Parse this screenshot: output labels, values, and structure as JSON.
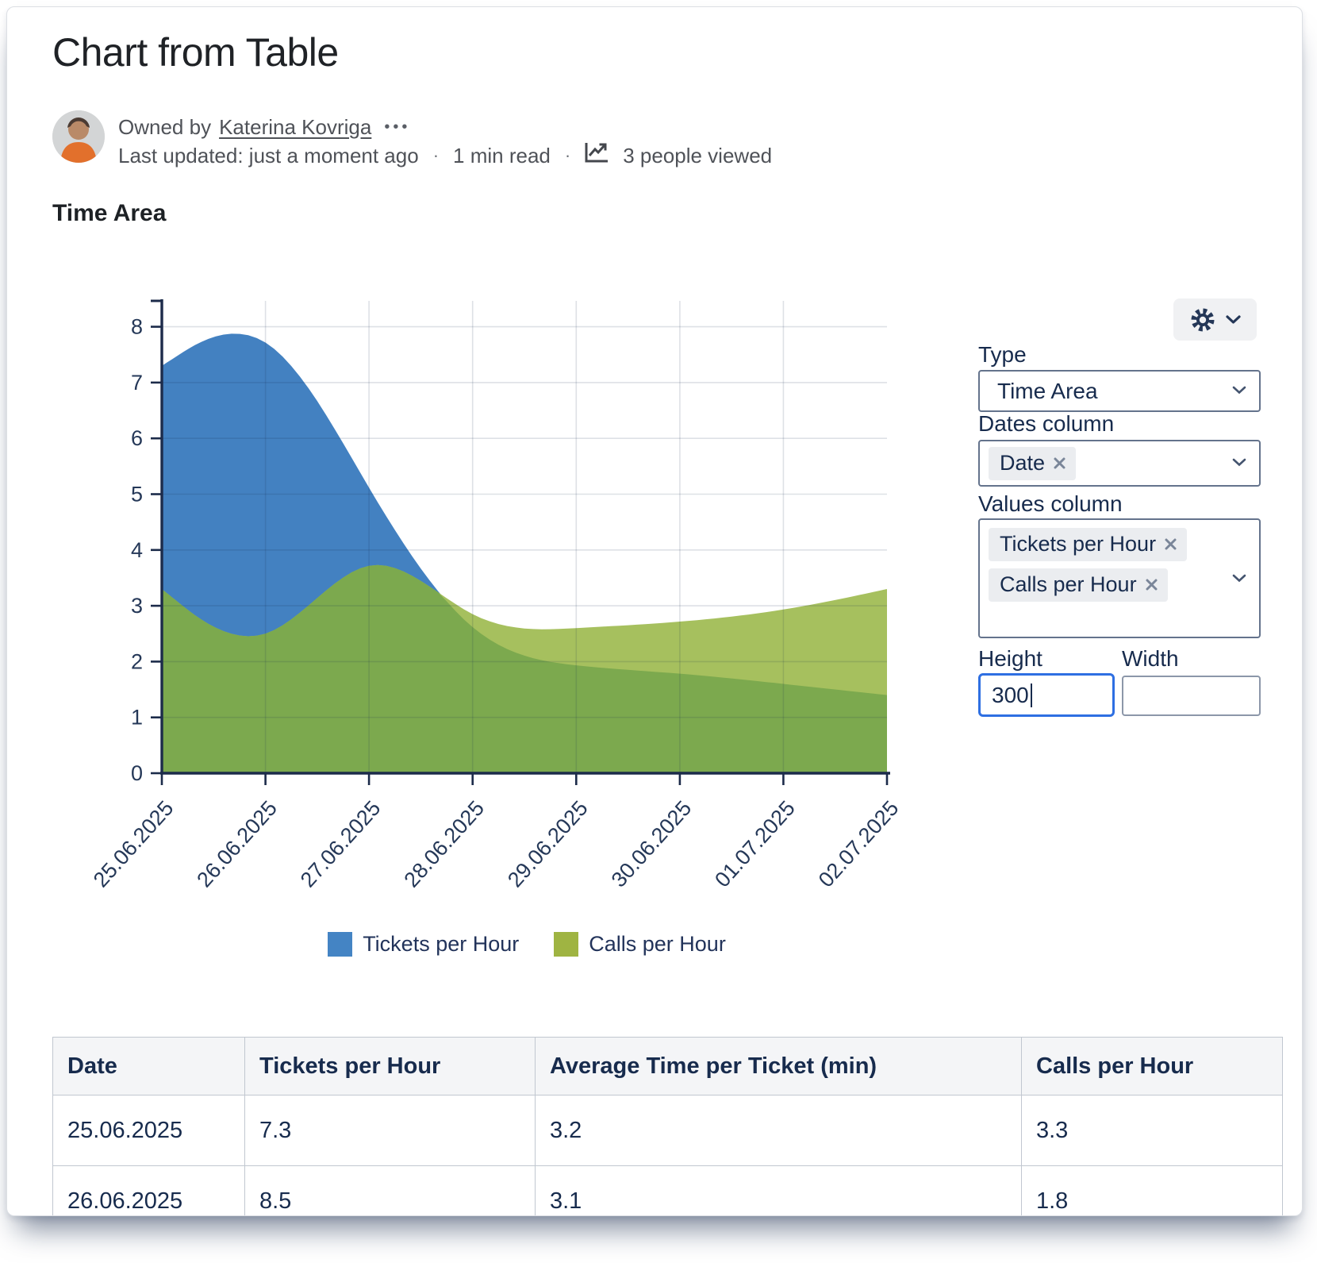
{
  "header": {
    "title": "Chart from Table",
    "owned_by_prefix": "Owned by",
    "owner": "Katerina Kovriga",
    "more_actions": "•••",
    "last_updated": "Last updated: just a moment ago",
    "read_time": "1 min read",
    "views": "3 people viewed",
    "separator": "·"
  },
  "section": {
    "heading": "Time Area"
  },
  "chart_data": {
    "type": "area",
    "smoothing": "basis",
    "title": "Time Area",
    "categories": [
      "25.06.2025",
      "26.06.2025",
      "27.06.2025",
      "28.06.2025",
      "29.06.2025",
      "30.06.2025",
      "01.07.2025",
      "02.07.2025"
    ],
    "series": [
      {
        "name": "Tickets per Hour",
        "color": "#4484C4",
        "fill": "#4381C1",
        "values": [
          7.3,
          8.5,
          5.0,
          2.2,
          1.9,
          1.8,
          1.6,
          1.4
        ]
      },
      {
        "name": "Calls per Hour",
        "color": "#9FB442",
        "fill": "#A6C05E",
        "overlap_fill": "#7CA94E",
        "values": [
          3.3,
          1.8,
          4.5,
          2.5,
          2.6,
          2.7,
          2.9,
          3.3
        ]
      }
    ],
    "ylim": [
      0,
      8
    ],
    "ytick_step": 1,
    "grid": true,
    "legend_position": "bottom",
    "axis_color": "#1c2b4a",
    "tick_label_color": "#253858"
  },
  "config_panel": {
    "type_label": "Type",
    "type_value": "Time Area",
    "dates_label": "Dates column",
    "dates_tags": [
      "Date"
    ],
    "values_label": "Values column",
    "values_tags": [
      "Tickets per Hour",
      "Calls per Hour"
    ],
    "height_label": "Height",
    "height_value": "300",
    "width_label": "Width",
    "width_value": ""
  },
  "table": {
    "headers": [
      "Date",
      "Tickets per Hour",
      "Average Time per Ticket (min)",
      "Calls per Hour"
    ],
    "rows": [
      [
        "25.06.2025",
        "7.3",
        "3.2",
        "3.3"
      ],
      [
        "26.06.2025",
        "8.5",
        "3.1",
        "1.8"
      ]
    ]
  }
}
